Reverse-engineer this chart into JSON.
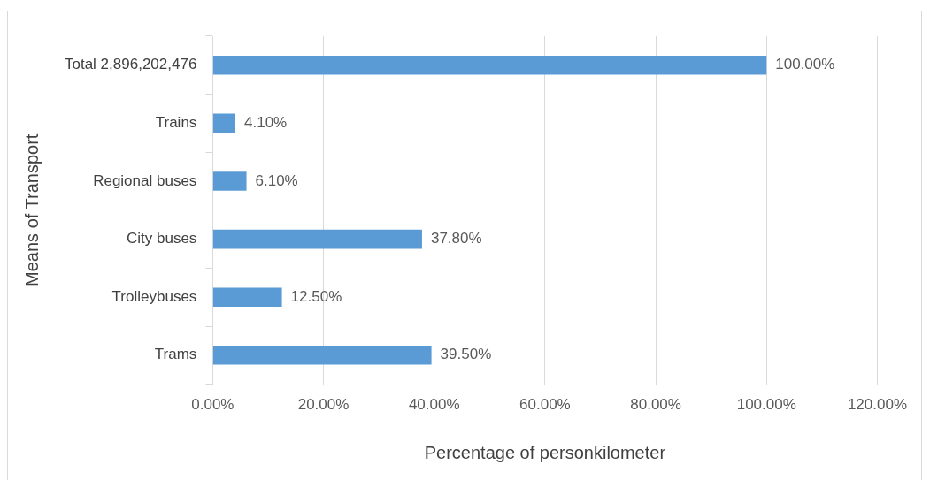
{
  "chart_data": {
    "type": "bar",
    "orientation": "horizontal",
    "xlabel": "Percentage of personkilometer",
    "ylabel": "Means of Transport",
    "categories": [
      "Total 2,896,202,476",
      "Trains",
      "Regional buses",
      "City buses",
      "Trolleybuses",
      "Trams"
    ],
    "values": [
      100,
      4.1,
      6.1,
      37.8,
      12.5,
      39.5
    ],
    "value_labels": [
      "100.00%",
      "4.10%",
      "6.10%",
      "37.80%",
      "12.50%",
      "39.50%"
    ],
    "color": "#5b9bd5",
    "xlim": [
      0,
      120
    ],
    "xticks": [
      {
        "value": 0,
        "label": "0.00%"
      },
      {
        "value": 20,
        "label": "20.00%"
      },
      {
        "value": 40,
        "label": "40.00%"
      },
      {
        "value": 60,
        "label": "60.00%"
      },
      {
        "value": 80,
        "label": "80.00%"
      },
      {
        "value": 100,
        "label": "100.00%"
      },
      {
        "value": 120,
        "label": "120.00%"
      }
    ],
    "grid": "x",
    "legend": false
  }
}
